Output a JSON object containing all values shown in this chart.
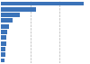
{
  "values": [
    32.0,
    13.5,
    7.3,
    4.5,
    3.2,
    2.6,
    2.2,
    2.0,
    1.8,
    1.6,
    1.3
  ],
  "bar_color": "#3B73B9",
  "background_color": "#ffffff",
  "grid_color": "#b0b0b0",
  "bar_height": 0.75,
  "ylim": [
    -0.5,
    10.5
  ],
  "xlim": [
    0,
    34
  ]
}
